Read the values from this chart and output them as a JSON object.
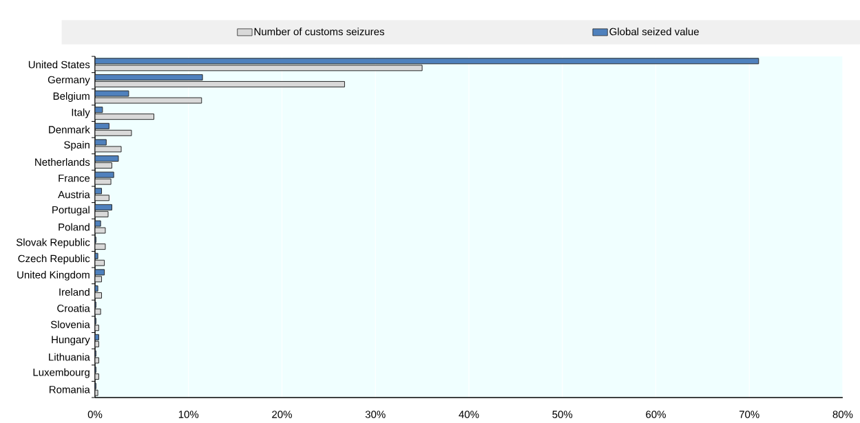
{
  "chart_data": {
    "type": "bar",
    "orientation": "horizontal",
    "categories": [
      "United States",
      "Germany",
      "Belgium",
      "Italy",
      "Denmark",
      "Spain",
      "Netherlands",
      "France",
      "Austria",
      "Portugal",
      "Poland",
      "Slovak Republic",
      "Czech Republic",
      "United Kingdom",
      "Ireland",
      "Croatia",
      "Slovenia",
      "Hungary",
      "Lithuania",
      "Luxembourg",
      "Romania"
    ],
    "series": [
      {
        "name": "Number of customs seizures",
        "color": "#d9d9d9",
        "values": [
          35,
          26.7,
          11.4,
          6.3,
          3.9,
          2.8,
          1.8,
          1.7,
          1.5,
          1.4,
          1.1,
          1.1,
          1.0,
          0.7,
          0.7,
          0.6,
          0.4,
          0.4,
          0.4,
          0.4,
          0.3
        ]
      },
      {
        "name": "Global seized value",
        "color": "#4f81bd",
        "values": [
          71,
          11.5,
          3.6,
          0.8,
          1.5,
          1.2,
          2.5,
          2.0,
          0.7,
          1.8,
          0.6,
          0.1,
          0.3,
          1.0,
          0.3,
          0.1,
          0.1,
          0.4,
          0.1,
          0.1,
          0.1
        ]
      }
    ],
    "xlim": [
      0,
      80
    ],
    "xticks": [
      {
        "value": 0,
        "label": "0%"
      },
      {
        "value": 10,
        "label": "10%"
      },
      {
        "value": 20,
        "label": "20%"
      },
      {
        "value": 30,
        "label": "30%"
      },
      {
        "value": 40,
        "label": "40%"
      },
      {
        "value": 50,
        "label": "50%"
      },
      {
        "value": 60,
        "label": "60%"
      },
      {
        "value": 70,
        "label": "70%"
      },
      {
        "value": 80,
        "label": "80%"
      }
    ],
    "grid": "x",
    "legend": "top"
  }
}
